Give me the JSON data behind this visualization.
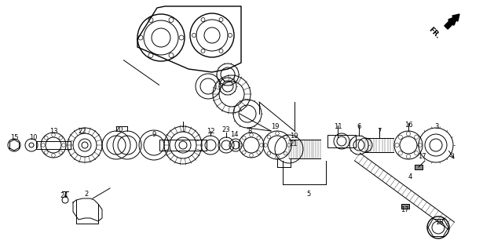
{
  "fig_width": 6.15,
  "fig_height": 3.2,
  "dpi": 100,
  "bg": "#ffffff",
  "lc": "#000000",
  "fr_label": "FR.",
  "part_labels": [
    [
      "15",
      18,
      175
    ],
    [
      "10",
      42,
      175
    ],
    [
      "13",
      68,
      168
    ],
    [
      "22",
      105,
      168
    ],
    [
      "20",
      152,
      165
    ],
    [
      "9",
      196,
      172
    ],
    [
      "1",
      233,
      165
    ],
    [
      "12",
      268,
      168
    ],
    [
      "23",
      288,
      165
    ],
    [
      "14",
      298,
      172
    ],
    [
      "8",
      318,
      168
    ],
    [
      "19",
      350,
      162
    ],
    [
      "19",
      374,
      173
    ],
    [
      "21",
      374,
      183
    ],
    [
      "11",
      430,
      162
    ],
    [
      "6",
      457,
      162
    ],
    [
      "7",
      483,
      168
    ],
    [
      "16",
      520,
      160
    ],
    [
      "3",
      556,
      162
    ],
    [
      "17",
      537,
      200
    ],
    [
      "4",
      522,
      225
    ],
    [
      "17",
      515,
      268
    ],
    [
      "18",
      559,
      284
    ],
    [
      "5",
      393,
      248
    ],
    [
      "24",
      82,
      250
    ],
    [
      "2",
      110,
      248
    ]
  ]
}
